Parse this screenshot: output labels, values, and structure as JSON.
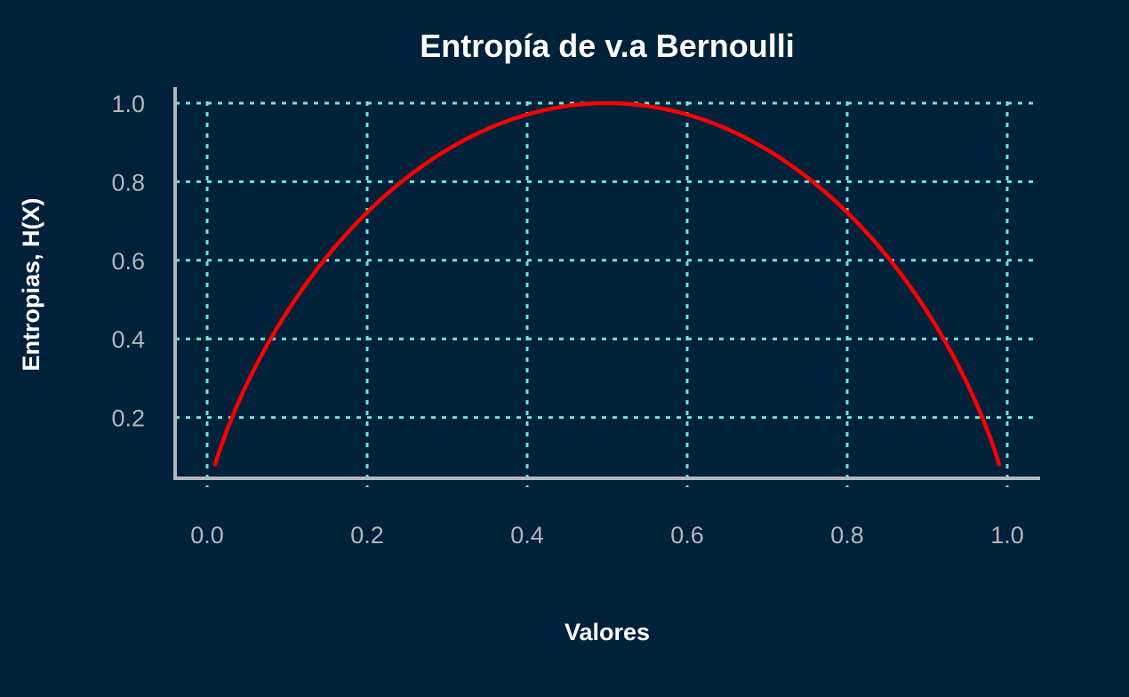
{
  "colors": {
    "background": "#00213a",
    "grid": "#6ee7d2",
    "axis": "#b3b6ba",
    "series": "#ff0000",
    "text": "#ffffff"
  },
  "chart_data": {
    "type": "line",
    "title": "Entropía de v.a Bernoulli",
    "xlabel": "Valores",
    "ylabel": "Entropias, H(X)",
    "xlim": [
      0.0,
      1.0
    ],
    "ylim": [
      0.08,
      1.0
    ],
    "xticks": [
      "0.0",
      "0.2",
      "0.4",
      "0.6",
      "0.8",
      "1.0"
    ],
    "yticks": [
      "0.2",
      "0.4",
      "0.6",
      "0.8",
      "1.0"
    ],
    "grid": true,
    "legend": false,
    "series": [
      {
        "x": [
          0.01,
          0.02,
          0.03,
          0.05,
          0.07,
          0.1,
          0.13,
          0.16,
          0.2,
          0.25,
          0.3,
          0.35,
          0.4,
          0.45,
          0.5,
          0.55,
          0.6,
          0.65,
          0.7,
          0.75,
          0.8,
          0.84,
          0.87,
          0.9,
          0.93,
          0.95,
          0.97,
          0.98,
          0.99
        ],
        "y": [
          0.081,
          0.141,
          0.194,
          0.286,
          0.366,
          0.469,
          0.557,
          0.634,
          0.722,
          0.811,
          0.881,
          0.934,
          0.971,
          0.993,
          1.0,
          0.993,
          0.971,
          0.934,
          0.881,
          0.811,
          0.722,
          0.634,
          0.557,
          0.469,
          0.366,
          0.286,
          0.194,
          0.141,
          0.081
        ]
      }
    ]
  }
}
